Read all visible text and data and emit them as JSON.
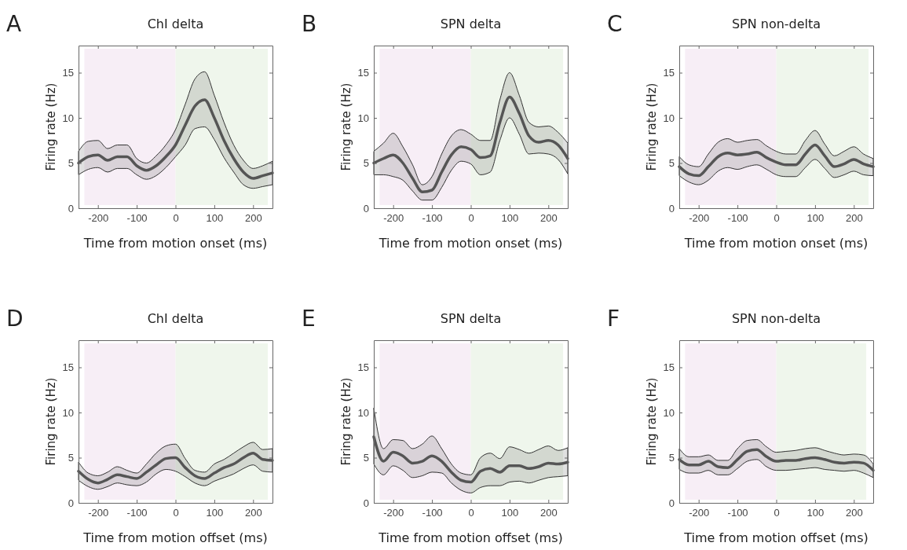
{
  "chart_data": [
    {
      "type": "line",
      "title": "ChI delta",
      "xlabel": "Time from motion onset (ms)",
      "ylabel": "Firing rate (Hz)",
      "annotations": [
        "A"
      ],
      "xlim": [
        -250,
        250
      ],
      "ylim": [
        0,
        18
      ],
      "xticks": [
        -200,
        -100,
        0,
        100,
        200
      ],
      "yticks": [
        0,
        5,
        10,
        15
      ],
      "bands": [
        {
          "axis": "x",
          "from": -235,
          "to": 0,
          "color": "#f7eef6"
        },
        {
          "axis": "x",
          "from": 0,
          "to": 238,
          "color": "#eff6ec"
        }
      ],
      "x": [
        -250,
        -225,
        -200,
        -175,
        -150,
        -125,
        -100,
        -75,
        -50,
        -25,
        0,
        25,
        50,
        75,
        100,
        125,
        150,
        175,
        200,
        225,
        250
      ],
      "series": [
        {
          "color": "#555555",
          "values": [
            5.0,
            5.7,
            5.9,
            5.3,
            5.7,
            5.7,
            4.7,
            4.2,
            4.7,
            5.7,
            7.0,
            9.2,
            11.3,
            12.0,
            10.0,
            7.5,
            5.5,
            4.0,
            3.3,
            3.6,
            3.9
          ],
          "upper": [
            6.3,
            7.4,
            7.5,
            6.6,
            7.0,
            7.0,
            5.5,
            5.0,
            5.8,
            7.0,
            8.7,
            11.5,
            14.3,
            15.1,
            12.5,
            9.5,
            7.0,
            5.3,
            4.4,
            4.7,
            5.2
          ],
          "lower": [
            3.7,
            4.3,
            4.5,
            4.0,
            4.4,
            4.4,
            3.7,
            3.2,
            3.6,
            4.5,
            5.7,
            7.0,
            8.8,
            9.0,
            7.6,
            5.6,
            4.0,
            2.6,
            2.2,
            2.4,
            2.6
          ]
        }
      ]
    },
    {
      "type": "line",
      "title": "SPN delta",
      "xlabel": "Time from motion onset (ms)",
      "ylabel": "Firing rate (Hz)",
      "annotations": [
        "B"
      ],
      "xlim": [
        -250,
        250
      ],
      "ylim": [
        0,
        18
      ],
      "xticks": [
        -200,
        -100,
        0,
        100,
        200
      ],
      "yticks": [
        0,
        5,
        10,
        15
      ],
      "bands": [
        {
          "axis": "x",
          "from": -235,
          "to": 0,
          "color": "#f7eef6"
        },
        {
          "axis": "x",
          "from": 0,
          "to": 238,
          "color": "#eff6ec"
        }
      ],
      "x": [
        -250,
        -225,
        -200,
        -175,
        -150,
        -125,
        -100,
        -75,
        -50,
        -25,
        0,
        25,
        50,
        75,
        100,
        125,
        150,
        175,
        200,
        225,
        250
      ],
      "series": [
        {
          "color": "#555555",
          "values": [
            5.0,
            5.5,
            5.9,
            5.0,
            3.3,
            1.8,
            2.0,
            4.0,
            5.9,
            6.8,
            6.5,
            5.6,
            5.8,
            9.5,
            12.3,
            10.5,
            8.0,
            7.3,
            7.5,
            7.0,
            5.5
          ],
          "upper": [
            6.3,
            7.2,
            8.3,
            6.8,
            4.8,
            2.6,
            3.5,
            6.0,
            8.0,
            8.7,
            8.2,
            7.5,
            7.5,
            12.0,
            15.0,
            12.5,
            9.5,
            9.0,
            9.1,
            8.4,
            7.2
          ],
          "lower": [
            3.7,
            3.7,
            3.5,
            3.1,
            1.9,
            0.9,
            0.9,
            2.3,
            4.2,
            5.2,
            4.9,
            3.7,
            4.0,
            7.5,
            10.0,
            8.2,
            6.0,
            6.1,
            6.0,
            5.4,
            3.8
          ]
        }
      ]
    },
    {
      "type": "line",
      "title": "SPN non-delta",
      "xlabel": "Time from motion onset (ms)",
      "ylabel": "Firing rate (Hz)",
      "annotations": [
        "C"
      ],
      "xlim": [
        -250,
        250
      ],
      "ylim": [
        0,
        18
      ],
      "xticks": [
        -200,
        -100,
        0,
        100,
        200
      ],
      "yticks": [
        0,
        5,
        10,
        15
      ],
      "bands": [
        {
          "axis": "x",
          "from": -235,
          "to": 0,
          "color": "#f7eef6"
        },
        {
          "axis": "x",
          "from": 0,
          "to": 238,
          "color": "#eff6ec"
        }
      ],
      "x": [
        -250,
        -225,
        -200,
        -175,
        -150,
        -125,
        -100,
        -75,
        -50,
        -25,
        0,
        25,
        50,
        75,
        100,
        125,
        150,
        175,
        200,
        225,
        250
      ],
      "series": [
        {
          "color": "#555555",
          "values": [
            4.6,
            3.8,
            3.6,
            4.6,
            5.7,
            6.1,
            5.9,
            6.0,
            6.2,
            5.6,
            5.1,
            4.8,
            4.8,
            6.0,
            7.0,
            5.8,
            4.6,
            4.9,
            5.4,
            4.9,
            4.6
          ],
          "upper": [
            5.7,
            4.8,
            4.6,
            6.0,
            7.3,
            7.7,
            7.3,
            7.5,
            7.6,
            6.9,
            6.3,
            6.0,
            6.0,
            7.5,
            8.6,
            7.1,
            5.8,
            6.3,
            6.8,
            6.0,
            5.5
          ],
          "lower": [
            3.6,
            2.9,
            2.6,
            3.1,
            4.1,
            4.5,
            4.3,
            4.6,
            4.8,
            4.3,
            3.7,
            3.5,
            3.5,
            4.5,
            5.4,
            4.4,
            3.4,
            3.7,
            4.1,
            3.7,
            3.6
          ]
        }
      ]
    },
    {
      "type": "line",
      "title": "ChI delta",
      "xlabel": "Time from motion offset (ms)",
      "ylabel": "Firing rate (Hz)",
      "annotations": [
        "D"
      ],
      "xlim": [
        -250,
        250
      ],
      "ylim": [
        0,
        18
      ],
      "xticks": [
        -200,
        -100,
        0,
        100,
        200
      ],
      "yticks": [
        0,
        5,
        10,
        15
      ],
      "bands": [
        {
          "axis": "x",
          "from": -235,
          "to": 0,
          "color": "#f7eef6"
        },
        {
          "axis": "x",
          "from": 0,
          "to": 238,
          "color": "#eff6ec"
        }
      ],
      "x": [
        -250,
        -225,
        -200,
        -175,
        -150,
        -125,
        -100,
        -75,
        -50,
        -25,
        0,
        25,
        50,
        75,
        100,
        125,
        150,
        175,
        200,
        225,
        250
      ],
      "series": [
        {
          "color": "#555555",
          "values": [
            3.5,
            2.6,
            2.2,
            2.6,
            3.1,
            2.9,
            2.7,
            3.4,
            4.2,
            4.9,
            5.0,
            3.9,
            3.0,
            2.7,
            3.3,
            3.9,
            4.3,
            5.0,
            5.5,
            4.8,
            4.7
          ],
          "upper": [
            4.5,
            3.3,
            3.0,
            3.4,
            4.0,
            3.6,
            3.3,
            4.3,
            5.5,
            6.3,
            6.5,
            4.9,
            3.6,
            3.4,
            4.3,
            4.8,
            5.5,
            6.2,
            6.7,
            5.9,
            6.0
          ],
          "lower": [
            2.5,
            1.8,
            1.5,
            1.8,
            2.2,
            2.0,
            1.9,
            2.3,
            3.2,
            3.7,
            3.5,
            2.9,
            2.2,
            1.9,
            2.4,
            2.8,
            3.2,
            3.8,
            4.2,
            3.5,
            3.4
          ]
        }
      ]
    },
    {
      "type": "line",
      "title": "SPN delta",
      "xlabel": "Time from motion offset (ms)",
      "ylabel": "Firing rate (Hz)",
      "annotations": [
        "E"
      ],
      "xlim": [
        -250,
        250
      ],
      "ylim": [
        0,
        18
      ],
      "xticks": [
        -200,
        -100,
        0,
        100,
        200
      ],
      "yticks": [
        0,
        5,
        10,
        15
      ],
      "bands": [
        {
          "axis": "x",
          "from": -235,
          "to": 0,
          "color": "#f7eef6"
        },
        {
          "axis": "x",
          "from": 0,
          "to": 238,
          "color": "#eff6ec"
        }
      ],
      "x": [
        -250,
        -225,
        -200,
        -175,
        -150,
        -125,
        -100,
        -75,
        -50,
        -25,
        0,
        25,
        50,
        75,
        100,
        125,
        150,
        175,
        200,
        225,
        250
      ],
      "series": [
        {
          "color": "#555555",
          "values": [
            7.3,
            4.6,
            5.6,
            5.2,
            4.4,
            4.6,
            5.2,
            4.6,
            3.4,
            2.5,
            2.3,
            3.5,
            3.8,
            3.4,
            4.1,
            4.1,
            3.8,
            4.0,
            4.4,
            4.3,
            4.5
          ],
          "upper": [
            10.5,
            6.0,
            7.0,
            6.9,
            6.0,
            6.5,
            7.4,
            6.0,
            4.3,
            3.3,
            3.1,
            5.0,
            5.5,
            4.9,
            6.2,
            5.9,
            5.5,
            5.9,
            6.3,
            5.8,
            6.1
          ],
          "lower": [
            4.3,
            3.1,
            4.1,
            3.6,
            2.8,
            3.0,
            3.4,
            3.3,
            2.2,
            1.4,
            1.1,
            1.7,
            1.9,
            1.9,
            2.3,
            2.4,
            2.2,
            2.5,
            2.8,
            2.9,
            3.0
          ]
        }
      ]
    },
    {
      "type": "line",
      "title": "SPN non-delta",
      "xlabel": "Time from motion offset (ms)",
      "ylabel": "Firing rate (Hz)",
      "annotations": [
        "F"
      ],
      "xlim": [
        -250,
        250
      ],
      "ylim": [
        0,
        18
      ],
      "xticks": [
        -200,
        -100,
        0,
        100,
        200
      ],
      "yticks": [
        0,
        5,
        10,
        15
      ],
      "bands": [
        {
          "axis": "x",
          "from": -235,
          "to": 0,
          "color": "#f7eef6"
        },
        {
          "axis": "x",
          "from": 0,
          "to": 232,
          "color": "#eff6ec"
        }
      ],
      "x": [
        -250,
        -225,
        -200,
        -175,
        -150,
        -125,
        -100,
        -75,
        -50,
        -25,
        0,
        25,
        50,
        75,
        100,
        125,
        150,
        175,
        200,
        225,
        250
      ],
      "series": [
        {
          "color": "#555555",
          "values": [
            4.8,
            4.2,
            4.2,
            4.6,
            4.0,
            3.9,
            4.8,
            5.7,
            5.9,
            5.1,
            4.6,
            4.7,
            4.7,
            4.9,
            5.0,
            4.8,
            4.5,
            4.4,
            4.5,
            4.4,
            3.6
          ],
          "upper": [
            6.0,
            5.1,
            5.1,
            5.3,
            4.7,
            4.7,
            6.0,
            6.9,
            7.0,
            6.2,
            5.6,
            5.7,
            5.8,
            6.0,
            6.1,
            5.8,
            5.5,
            5.3,
            5.4,
            5.3,
            4.3
          ],
          "lower": [
            3.7,
            3.3,
            3.3,
            3.6,
            3.1,
            3.1,
            3.8,
            4.6,
            4.8,
            4.0,
            3.6,
            3.6,
            3.7,
            3.8,
            3.9,
            3.7,
            3.6,
            3.5,
            3.6,
            3.3,
            2.8
          ]
        }
      ]
    }
  ]
}
